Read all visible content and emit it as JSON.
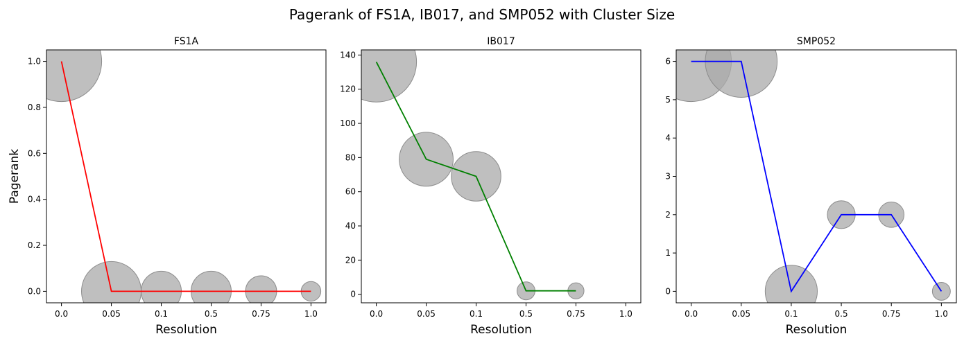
{
  "suptitle": "Pagerank of FS1A, IB017, and SMP052 with Cluster Size",
  "chart_data": [
    {
      "type": "line",
      "title": "FS1A",
      "xlabel": "Resolution",
      "ylabel": "Pagerank",
      "x_categories": [
        "0.0",
        "0.05",
        "0.1",
        "0.5",
        "0.75",
        "1.0"
      ],
      "values": [
        1.0,
        0.0,
        0.0,
        0.0,
        0.0,
        0.0
      ],
      "bubble_size": [
        100,
        55,
        25,
        25,
        15,
        6
      ],
      "line_color": "#ff0000",
      "bubble_color": "#a9a9a9",
      "ylim": [
        -0.05,
        1.05
      ],
      "yticks": [
        0.0,
        0.2,
        0.4,
        0.6,
        0.8,
        1.0
      ],
      "ytick_labels": [
        "0.0",
        "0.2",
        "0.4",
        "0.6",
        "0.8",
        "1.0"
      ]
    },
    {
      "type": "line",
      "title": "IB017",
      "xlabel": "Resolution",
      "ylabel": "",
      "x_categories": [
        "0.0",
        "0.05",
        "0.1",
        "0.5",
        "0.75",
        "1.0"
      ],
      "values": [
        136,
        79,
        69,
        2,
        2,
        null
      ],
      "bubble_size": [
        100,
        45,
        38,
        5,
        4,
        null
      ],
      "line_color": "#008000",
      "bubble_color": "#a9a9a9",
      "ylim": [
        -5,
        143
      ],
      "yticks": [
        0,
        20,
        40,
        60,
        80,
        100,
        120,
        140
      ],
      "ytick_labels": [
        "0",
        "20",
        "40",
        "60",
        "80",
        "100",
        "120",
        "140"
      ]
    },
    {
      "type": "line",
      "title": "SMP052",
      "xlabel": "Resolution",
      "ylabel": "",
      "x_categories": [
        "0.0",
        "0.05",
        "0.1",
        "0.5",
        "0.75",
        "1.0"
      ],
      "values": [
        6,
        6,
        0,
        2,
        2,
        0
      ],
      "bubble_size": [
        100,
        80,
        42,
        12,
        10,
        5
      ],
      "line_color": "#0000ff",
      "bubble_color": "#a9a9a9",
      "ylim": [
        -0.3,
        6.3
      ],
      "yticks": [
        0,
        1,
        2,
        3,
        4,
        5,
        6
      ],
      "ytick_labels": [
        "0",
        "1",
        "2",
        "3",
        "4",
        "5",
        "6"
      ]
    }
  ]
}
